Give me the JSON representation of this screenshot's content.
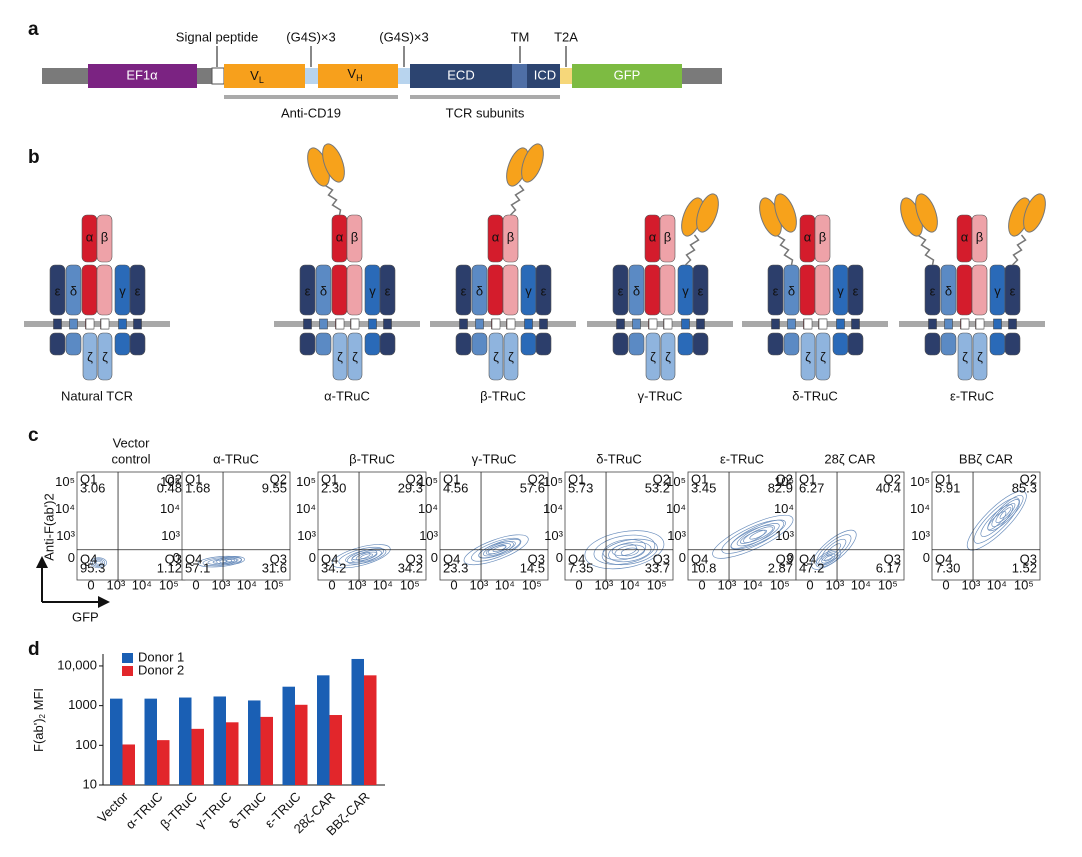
{
  "panel_a": {
    "label": "a",
    "promoter": "EF1α",
    "callouts": [
      "Signal peptide",
      "(G4S)×3",
      "(G4S)×3",
      "TM",
      "T2A"
    ],
    "vl": [
      "V",
      "L"
    ],
    "vh": [
      "V",
      "H"
    ],
    "ecd": "ECD",
    "icd": "ICD",
    "gfp": "GFP",
    "brackets": [
      "Anti-CD19",
      "TCR subunits"
    ]
  },
  "panel_b": {
    "label": "b",
    "chains": {
      "alpha": "α",
      "beta": "β",
      "gamma": "γ",
      "delta": "δ",
      "epsilon": "ε",
      "zeta": "ζ"
    },
    "constructs": [
      "Natural TCR",
      "α-TRuC",
      "β-TRuC",
      "γ-TRuC",
      "δ-TRuC",
      "ε-TRuC"
    ]
  },
  "panel_c": {
    "label": "c",
    "y_axis": "Anti-F(ab')2",
    "x_axis": "GFP",
    "axis_ticks": [
      "0",
      "10³",
      "10⁴",
      "10⁵"
    ],
    "quadrant_names": [
      "Q1",
      "Q2",
      "Q3",
      "Q4"
    ],
    "plots": [
      {
        "title": [
          "Vector",
          "control"
        ],
        "quadrants": [
          "3.06",
          "0.48",
          "1.12",
          "95.3"
        ]
      },
      {
        "title": [
          "α-TRuC"
        ],
        "quadrants": [
          "1.68",
          "9.55",
          "31.6",
          "57.1"
        ]
      },
      {
        "title": [
          "β-TRuC"
        ],
        "quadrants": [
          "2.30",
          "29.3",
          "34.2",
          "34.2"
        ]
      },
      {
        "title": [
          "γ-TRuC"
        ],
        "quadrants": [
          "4.56",
          "57.6",
          "14.5",
          "23.3"
        ]
      },
      {
        "title": [
          "δ-TRuC"
        ],
        "quadrants": [
          "5.73",
          "53.2",
          "33.7",
          "7.35"
        ]
      },
      {
        "title": [
          "ε-TRuC"
        ],
        "quadrants": [
          "3.45",
          "82.9",
          "2.87",
          "10.8"
        ]
      },
      {
        "title": [
          "28ζ CAR"
        ],
        "quadrants": [
          "6.27",
          "40.4",
          "6.17",
          "47.2"
        ]
      },
      {
        "title": [
          "BBζ CAR"
        ],
        "quadrants": [
          "5.91",
          "85.3",
          "1.52",
          "7.30"
        ]
      }
    ]
  },
  "panel_d": {
    "label": "d"
  },
  "chart_data": {
    "type": "bar",
    "ylabel": [
      "F(ab')",
      "2",
      " MFI"
    ],
    "categories": [
      "Vector",
      "α-TRuC",
      "β-TRuC",
      "γ-TRuC",
      "δ-TRuC",
      "ε-TRuC",
      "28ζ-CAR",
      "BBζ-CAR"
    ],
    "series": [
      {
        "name": "Donor 1",
        "color": "#1a5fb4",
        "values": [
          1500,
          1500,
          1600,
          1700,
          1350,
          3000,
          5800,
          15000
        ]
      },
      {
        "name": "Donor 2",
        "color": "#e2262b",
        "values": [
          105,
          135,
          260,
          380,
          520,
          1050,
          580,
          5800
        ]
      }
    ],
    "ylim": [
      10,
      20000
    ],
    "yticks": [
      10,
      100,
      1000,
      {
        "value": 10000,
        "label": "10,000"
      }
    ],
    "log_scale": true,
    "legend": "upper left"
  }
}
